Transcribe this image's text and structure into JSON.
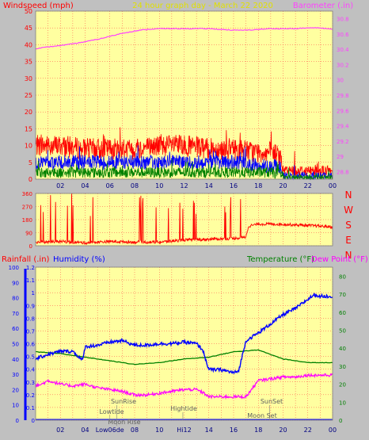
{
  "header": {
    "left_label": "Windspeed (mph)",
    "title": "24 hour graph day - March 22 2020",
    "right_label": "Barometer (.in)"
  },
  "direction_letters": [
    "N",
    "W",
    "S",
    "E",
    "N"
  ],
  "bottom_header": {
    "rainfall_label": "Rainfall (.in)",
    "humidity_label": "Humidity (%)",
    "temperature_label": "Temperature (°F)",
    "dewpoint_label": "Dew Point (°F)"
  },
  "colors": {
    "plot_bg": "#ffffa0",
    "frame_bg": "#c0c0c0",
    "grid": "#ff4040",
    "wind_gust": "#ff0000",
    "wind_avg": "#0000ff",
    "wind_low": "#008000",
    "barometer": "#ff40ff",
    "humidity": "#0000ff",
    "temperature": "#008000",
    "dewpoint": "#ff00ff",
    "rain": "#0000ff",
    "direction": "#ff0000"
  },
  "chart_data": [
    {
      "type": "line",
      "title": "24 hour graph day - March 22 2020",
      "x_ticks": [
        "02",
        "04",
        "06",
        "08",
        "10",
        "12",
        "14",
        "16",
        "18",
        "20",
        "22",
        "00"
      ],
      "y_left": {
        "label": "Windspeed (mph)",
        "range": [
          0,
          50
        ],
        "ticks": [
          "0",
          "5",
          "10",
          "15",
          "20",
          "25",
          "30",
          "35",
          "40",
          "45",
          "50"
        ]
      },
      "y_right": {
        "label": "Barometer (.in)",
        "range": [
          28.7,
          30.9
        ],
        "ticks": [
          "28.8",
          "29",
          "29.2",
          "29.4",
          "29.6",
          "29.8",
          "30",
          "30.2",
          "30.4",
          "30.6",
          "30.8"
        ]
      },
      "grid": true,
      "series": [
        {
          "name": "Barometer (.in)",
          "axis": "right",
          "x": [
            0,
            1,
            2,
            3,
            4,
            5,
            6,
            7,
            8,
            9,
            10,
            11,
            12,
            13,
            14,
            15,
            16,
            17,
            18,
            19,
            20,
            21,
            22,
            23,
            24
          ],
          "values": [
            30.41,
            30.43,
            30.45,
            30.47,
            30.5,
            30.53,
            30.57,
            30.61,
            30.64,
            30.66,
            30.67,
            30.67,
            30.67,
            30.67,
            30.67,
            30.66,
            30.65,
            30.65,
            30.66,
            30.67,
            30.67,
            30.67,
            30.68,
            30.68,
            30.66
          ]
        },
        {
          "name": "Wind gust",
          "axis": "left",
          "x": [
            0,
            2,
            4,
            6,
            8,
            10,
            12,
            14,
            16,
            18,
            19,
            19.8,
            20,
            22,
            24
          ],
          "values": [
            10,
            10,
            9,
            9,
            9,
            10,
            10,
            9,
            9,
            8,
            8,
            7,
            2.5,
            2.5,
            2.5
          ]
        },
        {
          "name": "Wind average",
          "axis": "left",
          "x": [
            0,
            2,
            4,
            6,
            8,
            10,
            12,
            14,
            16,
            18,
            19,
            19.8,
            20,
            22,
            24
          ],
          "values": [
            5,
            5,
            5,
            5,
            5,
            5,
            5,
            5,
            5,
            4,
            4,
            3.5,
            1,
            1,
            1
          ]
        },
        {
          "name": "Wind low",
          "axis": "left",
          "x": [
            0,
            2,
            4,
            6,
            8,
            10,
            12,
            14,
            16,
            18,
            19,
            19.8,
            20,
            22,
            24
          ],
          "values": [
            2,
            2,
            2,
            2,
            2,
            2,
            2,
            2,
            2,
            2,
            2,
            1.5,
            0.5,
            0.5,
            0.5
          ]
        }
      ]
    },
    {
      "type": "line",
      "title": "",
      "x_ticks": [],
      "y_left": {
        "label": "",
        "range": [
          0,
          360
        ],
        "ticks": [
          "0",
          "90",
          "180",
          "270",
          "360"
        ]
      },
      "y_right": {
        "label": "",
        "ticks": [
          "N",
          "W",
          "S",
          "E",
          "N"
        ]
      },
      "grid": true,
      "series": [
        {
          "name": "",
          "x": [
            0,
            2,
            4,
            6,
            8,
            10,
            12,
            14,
            16,
            17,
            17.2,
            18,
            20,
            22,
            24
          ],
          "values": [
            25,
            30,
            20,
            30,
            25,
            25,
            40,
            45,
            50,
            60,
            135,
            150,
            148,
            140,
            130
          ]
        }
      ]
    },
    {
      "type": "line",
      "title": "",
      "x_ticks": [
        "02",
        "04",
        "06",
        "08",
        "10",
        "12",
        "14",
        "16",
        "18",
        "20",
        "22",
        "00"
      ],
      "y_left": {
        "label": "Humidity (%)",
        "range": [
          0,
          100
        ],
        "ticks": [
          "0",
          "10",
          "20",
          "30",
          "40",
          "50",
          "60",
          "70",
          "80",
          "90",
          "100"
        ]
      },
      "y_left2": {
        "label": "Rainfall (.in)",
        "range": [
          0,
          1.2
        ],
        "ticks": [
          "0",
          "0.1",
          "0.2",
          "0.3",
          "0.4",
          "0.5",
          "0.6",
          "0.7",
          "0.8",
          "0.9",
          "1",
          "1.1",
          "1.2"
        ]
      },
      "y_right": {
        "label": "Temperature (°F)",
        "range": [
          0,
          85
        ],
        "ticks": [
          "0",
          "10",
          "20",
          "30",
          "40",
          "50",
          "60",
          "70",
          "80"
        ]
      },
      "grid": true,
      "series": [
        {
          "name": "Humidity (%)",
          "axis": "left",
          "x": [
            0,
            1,
            2,
            3,
            3.8,
            4,
            5,
            6,
            7,
            8,
            9,
            10,
            11,
            12,
            13,
            13.5,
            14,
            15,
            16,
            16.4,
            17,
            18,
            19,
            20,
            21,
            22,
            22.5,
            23,
            24
          ],
          "values": [
            40,
            43,
            45,
            45,
            39,
            48,
            49,
            51,
            52,
            49,
            49,
            50,
            50,
            51,
            50,
            46,
            33,
            33,
            31,
            32,
            52,
            57,
            63,
            69,
            73,
            79,
            82,
            81,
            81
          ]
        },
        {
          "name": "Temperature (°F)",
          "axis": "right",
          "x": [
            0,
            2,
            4,
            6,
            8,
            10,
            12,
            14,
            16,
            18,
            20,
            22,
            24
          ],
          "values": [
            38,
            37,
            35,
            33,
            31,
            32,
            34,
            35,
            38,
            39,
            34,
            32,
            32
          ]
        },
        {
          "name": "Dew Point (°F)",
          "axis": "right",
          "x": [
            0,
            0.5,
            1,
            2,
            3,
            4,
            5,
            6,
            7,
            8,
            9,
            10,
            11,
            12,
            13,
            13.6,
            14,
            15,
            16,
            17,
            18,
            19,
            20,
            21,
            22,
            23,
            24
          ],
          "values": [
            19,
            20,
            22,
            20,
            19,
            20,
            18,
            17,
            16,
            14,
            14,
            15,
            16,
            17,
            17,
            15,
            13,
            13,
            13,
            13,
            22,
            23,
            24,
            24,
            25,
            25,
            25
          ]
        },
        {
          "name": "Rainfall (.in)",
          "axis": "left2",
          "x": [
            0,
            24
          ],
          "values": [
            0,
            0
          ]
        }
      ],
      "annotations": [
        "SunRise",
        "Lowtide",
        "Moon Rise",
        "Hightide",
        "SunSet",
        "Moon Set"
      ],
      "bottom_ticks": [
        "02",
        "04",
        "Low06de",
        "08",
        "10",
        "Hi12",
        "14",
        "16",
        "18",
        "20",
        "22",
        "00"
      ]
    }
  ]
}
